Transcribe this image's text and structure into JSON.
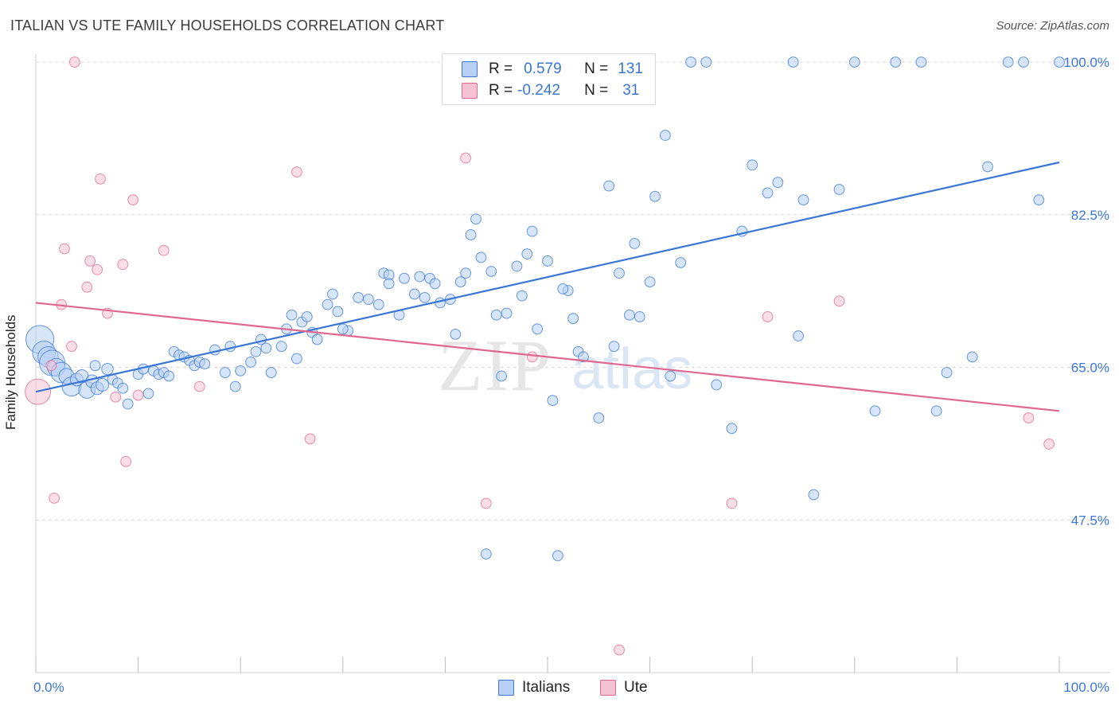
{
  "title": "ITALIAN VS UTE FAMILY HOUSEHOLDS CORRELATION CHART",
  "source": "Source: ZipAtlas.com",
  "watermark": {
    "zip": "ZIP",
    "atlas": "atlas"
  },
  "colors": {
    "italians": "#3a76d6",
    "italians_fill": "#b7d0f3",
    "ute": "#e06890",
    "ute_fill": "#f5c2d3",
    "grid": "#d9d9d9",
    "tick_text": "#3a76d6"
  },
  "legend": {
    "rows": [
      {
        "r_label": "R =",
        "r_value": "0.579",
        "n_label": "N =",
        "n_value": "131"
      },
      {
        "r_label": "R =",
        "r_value": "-0.242",
        "n_label": "N =",
        "n_value": "31"
      }
    ]
  },
  "bottom_legend": [
    "Italians",
    "Ute"
  ],
  "chart_data": {
    "type": "scatter",
    "title": "ITALIAN VS UTE FAMILY HOUSEHOLDS CORRELATION CHART",
    "xlabel": "",
    "ylabel": "Family Households",
    "xlim": [
      0,
      100
    ],
    "ylim": [
      30,
      100
    ],
    "x_tick_labels": [
      "0.0%",
      "100.0%"
    ],
    "y_ticks": [
      47.5,
      65.0,
      82.5,
      100.0
    ],
    "y_tick_labels": [
      "47.5%",
      "65.0%",
      "82.5%",
      "100.0%"
    ],
    "grid": true,
    "legend_position": "top-center",
    "series": [
      {
        "name": "Italians",
        "r": 0.579,
        "n": 131,
        "trend": {
          "x": [
            0,
            100
          ],
          "y": [
            62.2,
            88.5
          ]
        },
        "points": [
          [
            0.4,
            68.2,
            2.2
          ],
          [
            0.8,
            66.7,
            1.8
          ],
          [
            1.2,
            66.2,
            1.6
          ],
          [
            1.6,
            65.5,
            2.0
          ],
          [
            2.0,
            65.0,
            1.4
          ],
          [
            2.5,
            64.4,
            1.6
          ],
          [
            3.0,
            64.0,
            1.2
          ],
          [
            3.5,
            62.8,
            1.5
          ],
          [
            4.0,
            63.6,
            1.0
          ],
          [
            4.5,
            64.0,
            1.0
          ],
          [
            5.0,
            62.4,
            1.3
          ],
          [
            5.5,
            63.4,
            1.0
          ],
          [
            6.0,
            62.6,
            1.0
          ],
          [
            6.5,
            63.0,
            1.0
          ],
          [
            7.0,
            64.8,
            0.9
          ],
          [
            7.5,
            63.6,
            0.8
          ],
          [
            8.0,
            63.2,
            0.8
          ],
          [
            8.5,
            62.6,
            0.8
          ],
          [
            9.0,
            60.8,
            0.8
          ],
          [
            10.0,
            64.2,
            0.8
          ],
          [
            10.5,
            64.8,
            0.8
          ],
          [
            11.5,
            64.6,
            0.8
          ],
          [
            12.0,
            64.2,
            0.8
          ],
          [
            12.5,
            64.4,
            0.8
          ],
          [
            13.0,
            64.0,
            0.8
          ],
          [
            13.5,
            66.8,
            0.8
          ],
          [
            14.0,
            66.4,
            0.8
          ],
          [
            14.5,
            66.2,
            0.8
          ],
          [
            15.0,
            65.8,
            0.8
          ],
          [
            15.5,
            65.2,
            0.8
          ],
          [
            16.0,
            65.6,
            0.8
          ],
          [
            16.5,
            65.4,
            0.8
          ],
          [
            17.5,
            67.0,
            0.8
          ],
          [
            18.5,
            64.4,
            0.8
          ],
          [
            19.0,
            67.4,
            0.8
          ],
          [
            20.0,
            64.6,
            0.8
          ],
          [
            21.0,
            65.6,
            0.8
          ],
          [
            21.5,
            66.8,
            0.8
          ],
          [
            22.0,
            68.2,
            0.8
          ],
          [
            22.5,
            67.2,
            0.8
          ],
          [
            23.0,
            64.4,
            0.8
          ],
          [
            24.0,
            67.4,
            0.8
          ],
          [
            24.5,
            69.4,
            0.8
          ],
          [
            25.0,
            71.0,
            0.8
          ],
          [
            25.5,
            66.0,
            0.8
          ],
          [
            26.0,
            70.2,
            0.8
          ],
          [
            26.5,
            70.8,
            0.8
          ],
          [
            27.0,
            69.0,
            0.8
          ],
          [
            27.5,
            68.2,
            0.8
          ],
          [
            28.5,
            72.2,
            0.8
          ],
          [
            29.0,
            73.4,
            0.8
          ],
          [
            29.5,
            71.4,
            0.8
          ],
          [
            30.5,
            69.2,
            0.8
          ],
          [
            31.5,
            73.0,
            0.8
          ],
          [
            32.5,
            72.8,
            0.8
          ],
          [
            33.5,
            72.2,
            0.8
          ],
          [
            34.0,
            75.8,
            0.8
          ],
          [
            34.5,
            75.6,
            0.8
          ],
          [
            35.5,
            71.0,
            0.8
          ],
          [
            36.0,
            75.2,
            0.8
          ],
          [
            37.0,
            73.4,
            0.8
          ],
          [
            37.5,
            75.4,
            0.8
          ],
          [
            38.0,
            73.0,
            0.8
          ],
          [
            38.5,
            75.2,
            0.8
          ],
          [
            39.0,
            74.6,
            0.8
          ],
          [
            39.5,
            72.4,
            0.8
          ],
          [
            40.5,
            72.8,
            0.8
          ],
          [
            41.0,
            68.8,
            0.8
          ],
          [
            42.0,
            75.8,
            0.8
          ],
          [
            42.5,
            80.2,
            0.8
          ],
          [
            43.0,
            82.0,
            0.8
          ],
          [
            43.5,
            77.6,
            0.8
          ],
          [
            44.5,
            76.0,
            0.8
          ],
          [
            45.0,
            71.0,
            0.8
          ],
          [
            45.5,
            64.0,
            0.8
          ],
          [
            46.0,
            71.2,
            0.8
          ],
          [
            47.0,
            76.6,
            0.8
          ],
          [
            47.5,
            73.2,
            0.8
          ],
          [
            48.0,
            78.0,
            0.8
          ],
          [
            48.5,
            80.6,
            0.8
          ],
          [
            49.0,
            69.4,
            0.8
          ],
          [
            50.0,
            77.2,
            0.8
          ],
          [
            50.5,
            61.2,
            0.8
          ],
          [
            51.0,
            43.4,
            0.8
          ],
          [
            52.0,
            73.8,
            0.8
          ],
          [
            52.5,
            70.6,
            0.8
          ],
          [
            53.0,
            66.8,
            0.8
          ],
          [
            53.5,
            66.2,
            0.8
          ],
          [
            55.0,
            59.2,
            0.8
          ],
          [
            56.0,
            85.8,
            0.8
          ],
          [
            56.5,
            67.4,
            0.8
          ],
          [
            57.0,
            75.8,
            0.8
          ],
          [
            58.0,
            71.0,
            0.8
          ],
          [
            58.5,
            79.2,
            0.8
          ],
          [
            59.0,
            70.8,
            0.8
          ],
          [
            60.0,
            74.8,
            0.8
          ],
          [
            60.5,
            84.6,
            0.8
          ],
          [
            61.5,
            91.6,
            0.8
          ],
          [
            62.0,
            64.0,
            0.8
          ],
          [
            63.0,
            77.0,
            0.8
          ],
          [
            64.0,
            100.0,
            0.8
          ],
          [
            65.5,
            100.0,
            0.8
          ],
          [
            68.0,
            58.0,
            0.8
          ],
          [
            69.0,
            80.6,
            0.8
          ],
          [
            70.0,
            88.2,
            0.8
          ],
          [
            71.5,
            85.0,
            0.8
          ],
          [
            72.5,
            86.2,
            0.8
          ],
          [
            74.0,
            100.0,
            0.8
          ],
          [
            75.0,
            84.2,
            0.8
          ],
          [
            76.0,
            50.4,
            0.8
          ],
          [
            78.5,
            85.4,
            0.8
          ],
          [
            80.0,
            100.0,
            0.8
          ],
          [
            82.0,
            60.0,
            0.8
          ],
          [
            84.0,
            100.0,
            0.8
          ],
          [
            86.5,
            100.0,
            0.8
          ],
          [
            88.0,
            60.0,
            0.8
          ],
          [
            89.0,
            64.4,
            0.8
          ],
          [
            91.5,
            66.2,
            0.8
          ],
          [
            93.0,
            88.0,
            0.8
          ],
          [
            95.0,
            100.0,
            0.8
          ],
          [
            96.5,
            100.0,
            0.8
          ],
          [
            98.0,
            84.2,
            0.8
          ],
          [
            100.0,
            100.0,
            0.8
          ],
          [
            19.5,
            62.8,
            0.8
          ],
          [
            11.0,
            62.0,
            0.8
          ],
          [
            30.0,
            69.4,
            0.8
          ],
          [
            44.0,
            43.6,
            0.8
          ],
          [
            66.5,
            63.0,
            0.8
          ],
          [
            74.5,
            68.6,
            0.8
          ],
          [
            34.5,
            74.6,
            0.8
          ],
          [
            41.5,
            74.8,
            0.8
          ],
          [
            51.5,
            74.0,
            0.8
          ],
          [
            5.8,
            65.2,
            0.8
          ]
        ]
      },
      {
        "name": "Ute",
        "r": -0.242,
        "n": 31,
        "trend": {
          "x": [
            0,
            100
          ],
          "y": [
            72.4,
            60.0
          ]
        },
        "points": [
          [
            0.2,
            62.2,
            2.0
          ],
          [
            1.5,
            65.2,
            0.8
          ],
          [
            1.8,
            50.0,
            0.8
          ],
          [
            2.5,
            72.2,
            0.8
          ],
          [
            2.8,
            78.6,
            0.8
          ],
          [
            3.5,
            67.4,
            0.8
          ],
          [
            3.8,
            100.0,
            0.8
          ],
          [
            5.0,
            74.2,
            0.8
          ],
          [
            5.3,
            77.2,
            0.8
          ],
          [
            6.0,
            76.2,
            0.8
          ],
          [
            6.3,
            86.6,
            0.8
          ],
          [
            7.0,
            71.2,
            0.8
          ],
          [
            7.8,
            61.6,
            0.8
          ],
          [
            8.5,
            76.8,
            0.8
          ],
          [
            8.8,
            54.2,
            0.8
          ],
          [
            9.5,
            84.2,
            0.8
          ],
          [
            10.0,
            61.8,
            0.8
          ],
          [
            12.5,
            78.4,
            0.8
          ],
          [
            16.0,
            62.8,
            0.8
          ],
          [
            25.5,
            87.4,
            0.8
          ],
          [
            26.8,
            56.8,
            0.8
          ],
          [
            42.0,
            89.0,
            0.8
          ],
          [
            44.0,
            49.4,
            0.8
          ],
          [
            48.5,
            66.2,
            0.8
          ],
          [
            54.0,
            100.0,
            0.8
          ],
          [
            57.0,
            32.6,
            0.8
          ],
          [
            68.0,
            49.4,
            0.8
          ],
          [
            71.5,
            70.8,
            0.8
          ],
          [
            78.5,
            72.6,
            0.8
          ],
          [
            97.0,
            59.2,
            0.8
          ],
          [
            99.0,
            56.2,
            0.8
          ]
        ]
      }
    ]
  }
}
